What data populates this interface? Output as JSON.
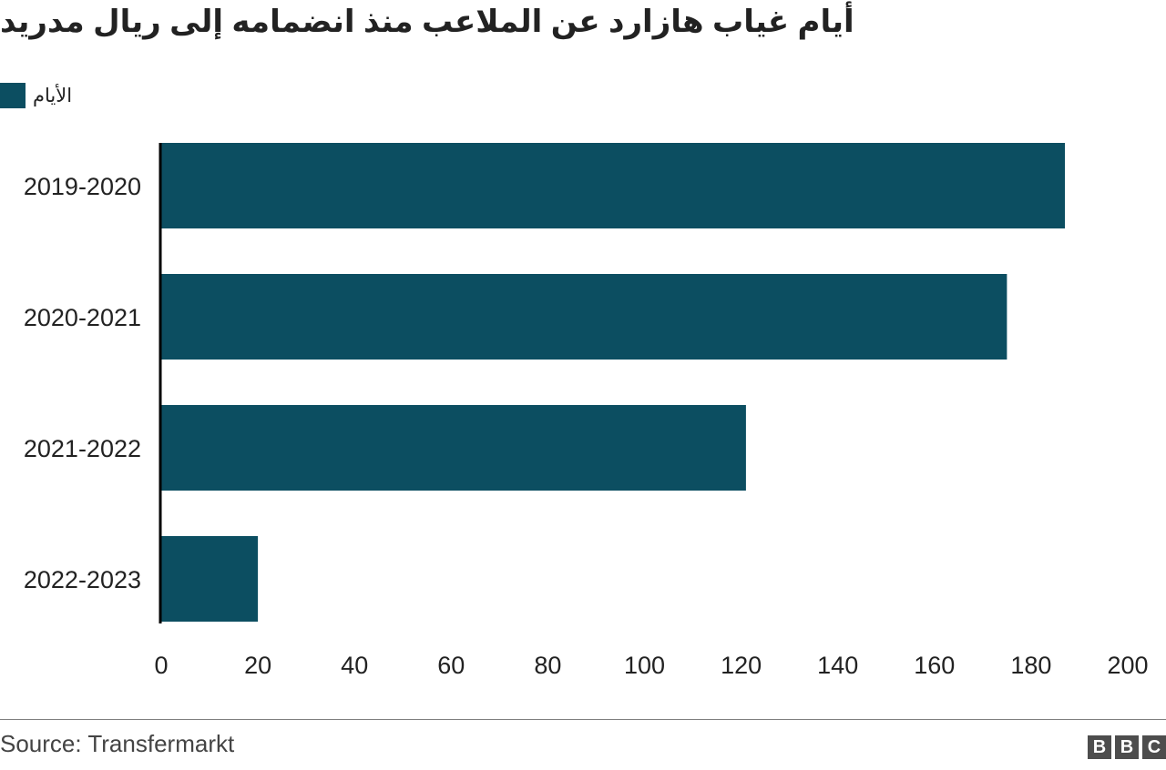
{
  "title": "أيام غياب هازارد عن الملاعب منذ انضمامه إلى ريال مدريد",
  "legend": {
    "label": "الأيام",
    "color": "#0c4e61"
  },
  "source": "Source: Transfermarkt",
  "logo": {
    "letters": [
      "B",
      "B",
      "C"
    ]
  },
  "colors": {
    "bar": "#0c4e61",
    "axis": "#000000",
    "text": "#222222",
    "footer_rule": "#7f7f7f",
    "logo_block": "#4d4d4d"
  },
  "chart_data": {
    "type": "bar",
    "orientation": "horizontal",
    "categories": [
      "2019-2020",
      "2020-2021",
      "2021-2022",
      "2022-2023"
    ],
    "series": [
      {
        "name": "الأيام",
        "values": [
          187,
          175,
          121,
          20
        ]
      }
    ],
    "xlim": [
      0,
      200
    ],
    "xticks": [
      0,
      20,
      40,
      60,
      80,
      100,
      120,
      140,
      160,
      180,
      200
    ],
    "grid": false,
    "legend_position": "top-left"
  }
}
